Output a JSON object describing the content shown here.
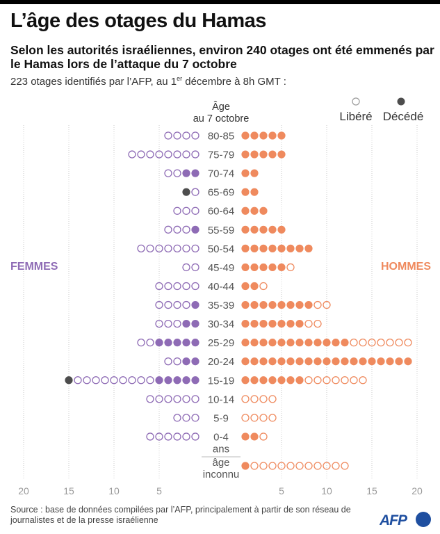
{
  "title": "L’âge des otages du Hamas",
  "subtitle": "Selon les autorités israéliennes, environ 240 otages ont été emmenés par le Hamas lors de l’attaque du 7 octobre",
  "intro_before": "223 otages identifiés par l’AFP, au 1",
  "intro_sup": "er",
  "intro_after": " décembre à 8h GMT :",
  "source": "Source : base de données compilées par l’AFP, principalement à partir de son réseau de journalistes et de la presse israélienne",
  "logo_text": "AFP",
  "colors": {
    "women": "#8e6bb5",
    "men": "#ef8a5e",
    "deceased": "#4d4d4d",
    "grid": "#cccccc",
    "logo": "#1f4fa0"
  },
  "chart_data": {
    "type": "dot-pyramid",
    "center_label_line1": "Âge",
    "center_label_line2": "au 7 octobre",
    "left_label": "FEMMES",
    "right_label": "HOMMES",
    "legend": [
      {
        "label": "Libéré",
        "marker": "open-circle"
      },
      {
        "label": "Décédé",
        "marker": "filled-dark-circle"
      }
    ],
    "x_ticks_left": [
      "20",
      "15",
      "10",
      "5"
    ],
    "x_ticks_right": [
      "5",
      "10",
      "15",
      "20"
    ],
    "xlim": [
      0,
      20
    ],
    "grid": true,
    "categories": [
      "80-85",
      "75-79",
      "70-74",
      "65-69",
      "60-64",
      "55-59",
      "50-54",
      "45-49",
      "40-44",
      "35-39",
      "30-34",
      "25-29",
      "20-24",
      "15-19",
      "10-14",
      "5-9",
      "0-4 ans",
      "âge inconnu"
    ],
    "women": {
      "held": [
        0,
        0,
        2,
        0,
        0,
        1,
        0,
        0,
        0,
        1,
        2,
        5,
        2,
        5,
        0,
        0,
        0,
        0
      ],
      "released": [
        4,
        8,
        2,
        1,
        3,
        3,
        7,
        2,
        5,
        4,
        3,
        2,
        2,
        9,
        6,
        3,
        6,
        0
      ],
      "deceased": [
        0,
        0,
        0,
        1,
        0,
        0,
        0,
        0,
        0,
        0,
        0,
        0,
        0,
        1,
        0,
        0,
        0,
        0
      ]
    },
    "men": {
      "held": [
        5,
        5,
        2,
        2,
        3,
        5,
        8,
        5,
        2,
        8,
        7,
        12,
        19,
        7,
        0,
        0,
        2,
        1
      ],
      "released": [
        0,
        0,
        0,
        0,
        0,
        0,
        0,
        1,
        1,
        2,
        2,
        7,
        0,
        7,
        4,
        4,
        1,
        11
      ],
      "deceased": [
        0,
        0,
        0,
        0,
        0,
        0,
        0,
        0,
        0,
        0,
        0,
        0,
        0,
        0,
        0,
        0,
        0,
        0
      ]
    }
  }
}
